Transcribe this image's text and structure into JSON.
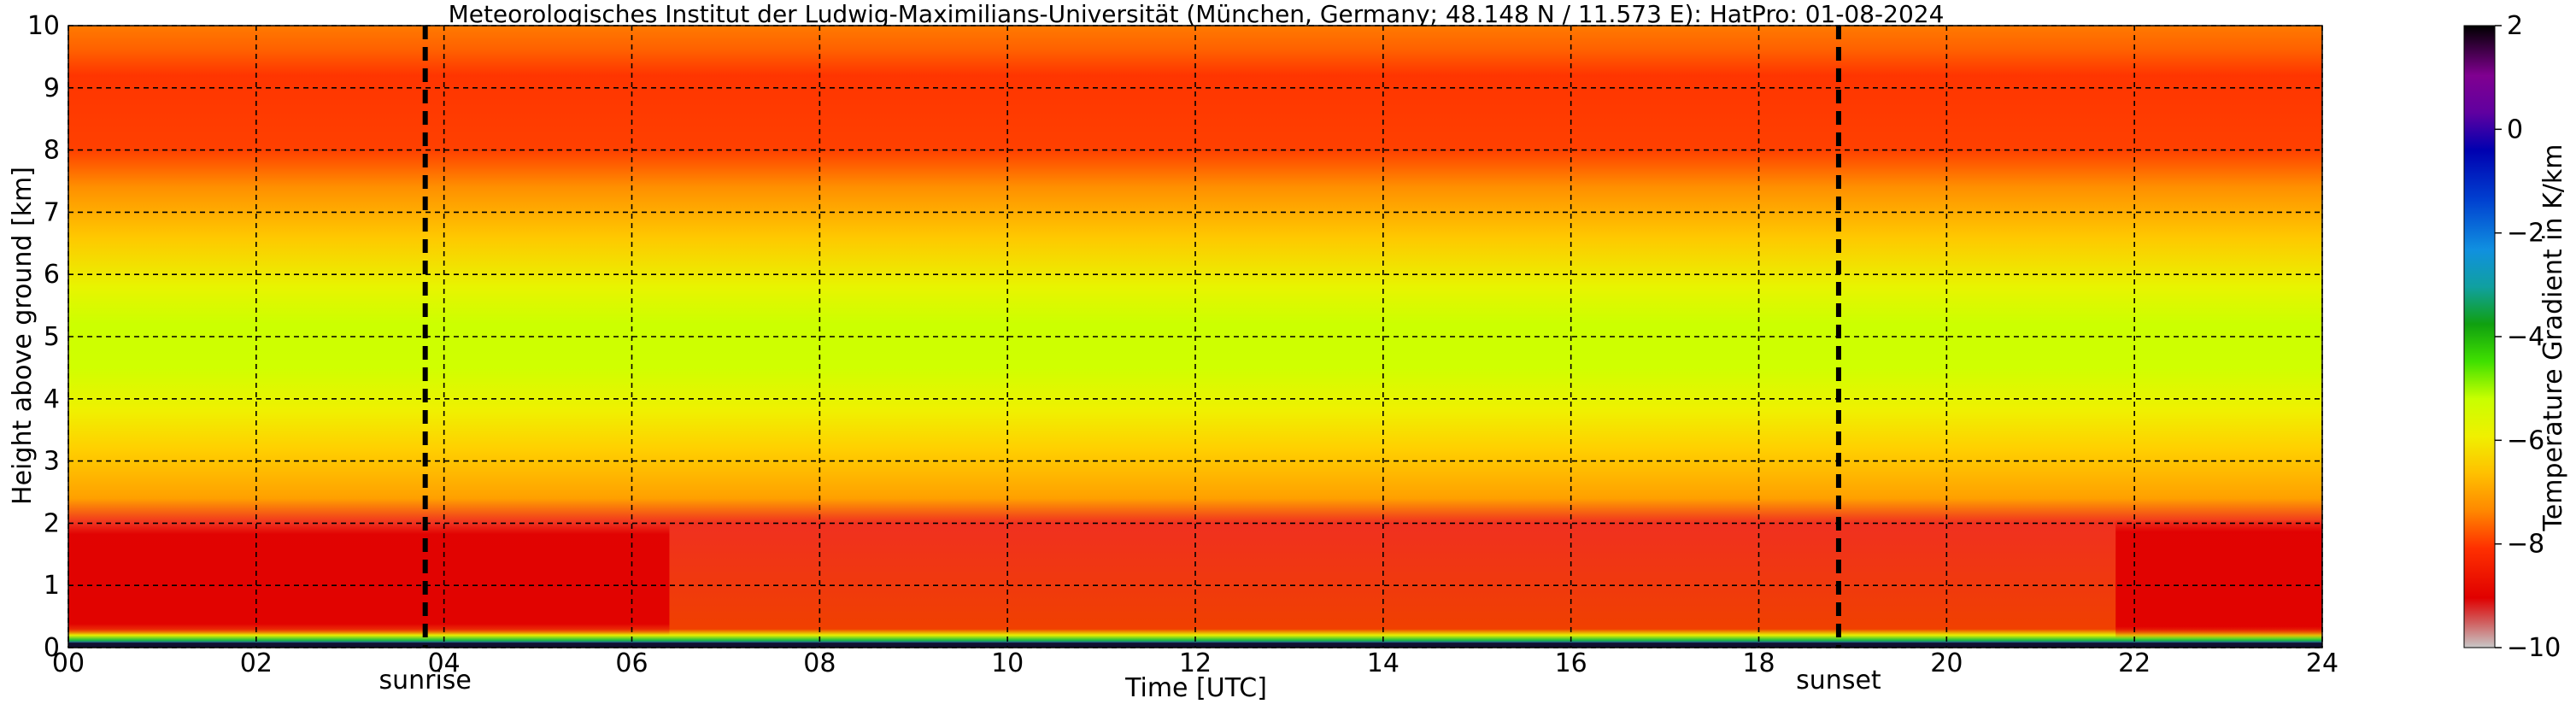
{
  "chart_data": {
    "type": "heatmap",
    "title": "Meteorologisches Institut der Ludwig-Maximilians-Universität (München, Germany; 48.148 N / 11.573 E):    HatPro: 01-08-2024",
    "xlabel": "Time [UTC]",
    "ylabel": "Height above ground [km]",
    "xlim": [
      0,
      24
    ],
    "ylim": [
      0,
      10
    ],
    "x_ticks": [
      "00",
      "02",
      "04",
      "06",
      "08",
      "10",
      "12",
      "14",
      "16",
      "18",
      "20",
      "22",
      "24"
    ],
    "y_ticks": [
      "0",
      "1",
      "2",
      "3",
      "4",
      "5",
      "6",
      "7",
      "8",
      "9",
      "10"
    ],
    "grid": true,
    "events": [
      {
        "label": "sunrise",
        "time": 3.8
      },
      {
        "label": "sunset",
        "time": 18.85
      }
    ],
    "colorbar": {
      "label": "Temperature Gradient in K/km",
      "range": [
        -10,
        2
      ],
      "ticks": [
        "2",
        "0",
        "−2",
        "−4",
        "−6",
        "−8",
        "−10"
      ]
    },
    "layers": [
      {
        "height_km": [
          0.0,
          0.1
        ],
        "approx_gradient_K_per_km": -3
      },
      {
        "height_km": [
          0.1,
          0.3
        ],
        "approx_gradient_K_per_km": -6
      },
      {
        "height_km": [
          0.3,
          2.0
        ],
        "approx_gradient_K_per_km": -7.5,
        "note_night": -8.5
      },
      {
        "height_km": [
          2.0,
          3.5
        ],
        "approx_gradient_K_per_km": -7
      },
      {
        "height_km": [
          3.5,
          5.5
        ],
        "approx_gradient_K_per_km": -6
      },
      {
        "height_km": [
          5.5,
          8.0
        ],
        "approx_gradient_K_per_km": -7.5
      },
      {
        "height_km": [
          8.0,
          9.5
        ],
        "approx_gradient_K_per_km": -8.5
      },
      {
        "height_km": [
          9.5,
          10.0
        ],
        "approx_gradient_K_per_km": -8
      }
    ]
  }
}
